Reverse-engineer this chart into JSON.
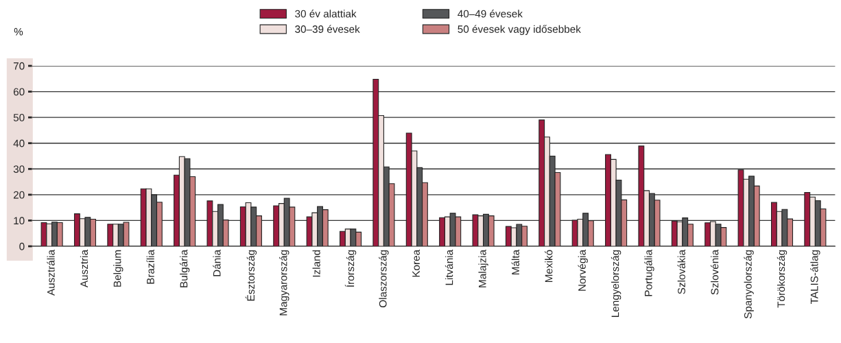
{
  "chart_data": {
    "type": "bar",
    "ylabel": "%",
    "categories": [
      "Ausztrália",
      "Ausztria",
      "Belgium",
      "Brazília",
      "Bulgária",
      "Dánia",
      "Észtország",
      "Magyarország",
      "Izland",
      "Írország",
      "Olaszország",
      "Korea",
      "Litvánia",
      "Malajzia",
      "Málta",
      "Mexikó",
      "Norvégia",
      "Lengyelország",
      "Portugália",
      "Szlovákia",
      "Szlovénia",
      "Spanyolország",
      "Törökország",
      "TALIS-átlag"
    ],
    "series": [
      {
        "name": "30 év alattiak",
        "color": "#9e1b3f",
        "values": [
          9.2,
          12.6,
          8.6,
          22.3,
          27.6,
          17.6,
          15.3,
          15.7,
          11.4,
          5.8,
          64.8,
          43.9,
          11.1,
          12.2,
          7.7,
          49.0,
          10.1,
          35.6,
          38.9,
          9.8,
          9.1,
          29.6,
          17.0,
          20.9
        ]
      },
      {
        "name": "30–39 évesek",
        "color": "#f0e0dd",
        "values": [
          8.7,
          10.7,
          8.6,
          22.3,
          34.8,
          13.5,
          16.9,
          16.6,
          13.0,
          6.7,
          50.7,
          37.0,
          11.4,
          11.8,
          7.2,
          42.4,
          10.5,
          33.7,
          21.6,
          9.5,
          9.6,
          26.0,
          13.5,
          19.1
        ]
      },
      {
        "name": "40–49 évesek",
        "color": "#555759",
        "values": [
          9.4,
          11.2,
          8.6,
          20.0,
          34.0,
          16.2,
          15.2,
          18.6,
          15.4,
          6.7,
          30.8,
          30.5,
          12.8,
          12.4,
          8.5,
          35.0,
          12.8,
          25.7,
          20.5,
          11.0,
          8.6,
          27.2,
          14.3,
          17.7
        ]
      },
      {
        "name": "50 évesek vagy idősebbek",
        "color": "#c98080",
        "values": [
          9.2,
          10.5,
          9.3,
          17.1,
          27.0,
          10.2,
          11.8,
          15.2,
          14.2,
          5.5,
          24.3,
          24.7,
          11.4,
          11.8,
          7.8,
          28.6,
          9.9,
          18.0,
          17.9,
          8.6,
          7.3,
          23.4,
          10.6,
          14.5
        ]
      }
    ],
    "ylim": [
      0,
      70
    ],
    "yticks": [
      0,
      10,
      20,
      30,
      40,
      50,
      60,
      70
    ],
    "grid": "y",
    "legend": "top"
  }
}
